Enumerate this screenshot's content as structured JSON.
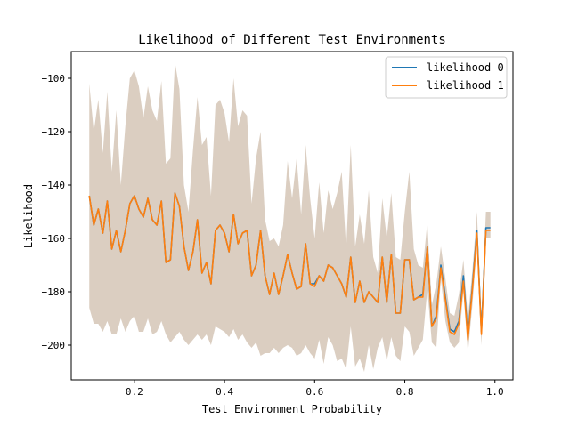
{
  "chart_data": {
    "type": "line",
    "title": "Likelihood of Different Test Environments",
    "xlabel": "Test Environment Probability",
    "ylabel": "Likelihood",
    "xlim": [
      0.06,
      1.04
    ],
    "ylim": [
      -213,
      -90
    ],
    "xticks": [
      {
        "value": 0.2,
        "label": "0.2"
      },
      {
        "value": 0.4,
        "label": "0.4"
      },
      {
        "value": 0.6,
        "label": "0.6"
      },
      {
        "value": 0.8,
        "label": "0.8"
      },
      {
        "value": 1.0,
        "label": "1.0"
      }
    ],
    "yticks": [
      {
        "value": -100,
        "label": "−100"
      },
      {
        "value": -120,
        "label": "−120"
      },
      {
        "value": -140,
        "label": "−140"
      },
      {
        "value": -160,
        "label": "−160"
      },
      {
        "value": -180,
        "label": "−180"
      },
      {
        "value": -200,
        "label": "−200"
      }
    ],
    "grid": false,
    "legend_position": "top-right",
    "band_color": "#d9cbbe",
    "x": [
      0.1,
      0.11,
      0.12,
      0.13,
      0.14,
      0.15,
      0.16,
      0.17,
      0.18,
      0.19,
      0.2,
      0.21,
      0.22,
      0.23,
      0.24,
      0.25,
      0.26,
      0.27,
      0.28,
      0.29,
      0.3,
      0.31,
      0.32,
      0.33,
      0.34,
      0.35,
      0.36,
      0.37,
      0.38,
      0.39,
      0.4,
      0.41,
      0.42,
      0.43,
      0.44,
      0.45,
      0.46,
      0.47,
      0.48,
      0.49,
      0.5,
      0.51,
      0.52,
      0.53,
      0.54,
      0.55,
      0.56,
      0.57,
      0.58,
      0.59,
      0.6,
      0.61,
      0.62,
      0.63,
      0.64,
      0.65,
      0.66,
      0.67,
      0.68,
      0.69,
      0.7,
      0.71,
      0.72,
      0.73,
      0.74,
      0.75,
      0.76,
      0.77,
      0.78,
      0.79,
      0.8,
      0.81,
      0.82,
      0.83,
      0.84,
      0.85,
      0.86,
      0.87,
      0.88,
      0.89,
      0.9,
      0.91,
      0.92,
      0.93,
      0.94,
      0.95,
      0.96,
      0.97,
      0.98,
      0.99
    ],
    "series": [
      {
        "name": "likelihood 0",
        "color": "#1f77b4",
        "values": [
          -144,
          -155,
          -149,
          -158,
          -146,
          -164,
          -157,
          -165,
          -157,
          -147,
          -144,
          -149,
          -152,
          -145,
          -153,
          -155,
          -146,
          -169,
          -168,
          -143,
          -148,
          -163,
          -172,
          -165,
          -153,
          -173,
          -169,
          -177,
          -157,
          -155,
          -158,
          -165,
          -151,
          -162,
          -158,
          -157,
          -174,
          -170,
          -157,
          -174,
          -181,
          -173,
          -181,
          -174,
          -166,
          -173,
          -179,
          -178,
          -162,
          -177,
          -177,
          -174,
          -176,
          -170,
          -171,
          -174,
          -177,
          -182,
          -167,
          -184,
          -176,
          -184,
          -180,
          -182,
          -184,
          -167,
          -184,
          -166,
          -188,
          -188,
          -168,
          -168,
          -183,
          -182,
          -181,
          -163,
          -193,
          -189,
          -170,
          -182,
          -194,
          -195,
          -191,
          -174,
          -197,
          -178,
          -157,
          -195,
          -156,
          -156
        ]
      },
      {
        "name": "likelihood 1",
        "color": "#ff7f0e",
        "values": [
          -144,
          -155,
          -149,
          -158,
          -146,
          -164,
          -157,
          -165,
          -157,
          -147,
          -144,
          -149,
          -152,
          -145,
          -153,
          -155,
          -146,
          -169,
          -168,
          -143,
          -148,
          -163,
          -172,
          -165,
          -153,
          -173,
          -169,
          -177,
          -157,
          -155,
          -158,
          -165,
          -151,
          -162,
          -158,
          -157,
          -174,
          -170,
          -157,
          -174,
          -181,
          -173,
          -181,
          -174,
          -166,
          -173,
          -179,
          -178,
          -162,
          -177,
          -178,
          -174,
          -176,
          -170,
          -171,
          -174,
          -177,
          -182,
          -167,
          -184,
          -176,
          -184,
          -180,
          -182,
          -184,
          -167,
          -184,
          -166,
          -188,
          -188,
          -168,
          -168,
          -183,
          -182,
          -182,
          -163,
          -193,
          -190,
          -171,
          -183,
          -195,
          -196,
          -192,
          -176,
          -198,
          -179,
          -158,
          -196,
          -157,
          -157
        ]
      }
    ],
    "band_upper": [
      -102,
      -120,
      -108,
      -128,
      -105,
      -135,
      -112,
      -140,
      -118,
      -100,
      -97,
      -103,
      -115,
      -103,
      -112,
      -116,
      -101,
      -132,
      -130,
      -94,
      -104,
      -140,
      -150,
      -127,
      -107,
      -125,
      -122,
      -144,
      -110,
      -108,
      -113,
      -124,
      -100,
      -118,
      -112,
      -114,
      -147,
      -130,
      -120,
      -153,
      -161,
      -160,
      -163,
      -155,
      -131,
      -145,
      -130,
      -151,
      -125,
      -145,
      -160,
      -139,
      -158,
      -142,
      -149,
      -143,
      -135,
      -164,
      -125,
      -163,
      -151,
      -162,
      -142,
      -167,
      -173,
      -145,
      -160,
      -143,
      -167,
      -168,
      -150,
      -135,
      -164,
      -170,
      -171,
      -154,
      -185,
      -177,
      -163,
      -175,
      -188,
      -189,
      -181,
      -168,
      -190,
      -172,
      -150,
      -190,
      -150,
      -150
    ],
    "band_lower": [
      -186,
      -192,
      -192,
      -195,
      -191,
      -196,
      -196,
      -190,
      -195,
      -191,
      -189,
      -195,
      -195,
      -190,
      -196,
      -195,
      -191,
      -196,
      -199,
      -197,
      -195,
      -198,
      -200,
      -198,
      -196,
      -198,
      -196,
      -200,
      -193,
      -194,
      -195,
      -197,
      -194,
      -198,
      -196,
      -199,
      -201,
      -199,
      -204,
      -203,
      -203,
      -201,
      -203,
      -201,
      -200,
      -201,
      -204,
      -203,
      -200,
      -203,
      -205,
      -198,
      -207,
      -197,
      -200,
      -206,
      -205,
      -209,
      -193,
      -208,
      -205,
      -210,
      -200,
      -209,
      -201,
      -197,
      -206,
      -197,
      -204,
      -206,
      -193,
      -195,
      -204,
      -201,
      -198,
      -179,
      -199,
      -201,
      -175,
      -191,
      -199,
      -201,
      -199,
      -180,
      -203,
      -185,
      -163,
      -200,
      -160,
      -160
    ]
  }
}
